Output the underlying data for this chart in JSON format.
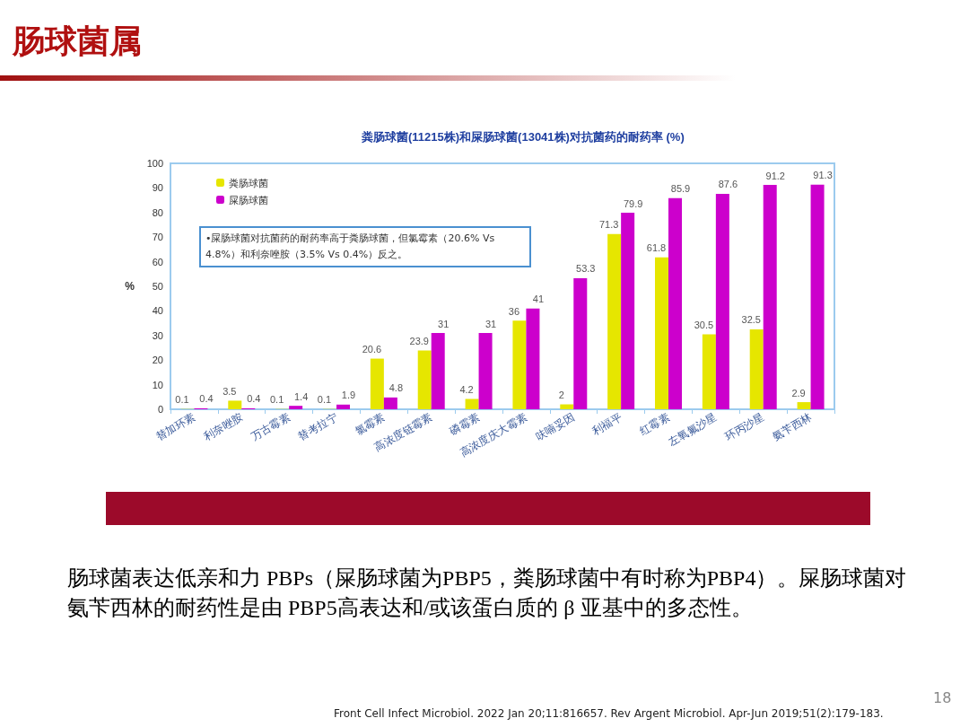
{
  "chart_data": {
    "type": "bar",
    "title": "肠球菌属",
    "subtitle": "粪肠球菌(11215株)和屎肠球菌(13041株)对抗菌药的耐药率 (%)",
    "ylabel": "%",
    "categories": [
      "替加环素",
      "利奈唑胺",
      "万古霉素",
      "替考拉宁",
      "氯霉素",
      "高浓度链霉素",
      "磷霉素",
      "高浓度庆大霉素",
      "呋喃妥因",
      "利福平",
      "红霉素",
      "左氧氟沙星",
      "环丙沙星",
      "氨苄西林"
    ],
    "series": [
      {
        "name": "粪肠球菌",
        "color": "#e6e600",
        "values": [
          0.1,
          3.5,
          0.1,
          0.1,
          20.6,
          23.9,
          4.2,
          36,
          2,
          71.3,
          61.8,
          30.5,
          32.5,
          2.9
        ]
      },
      {
        "name": "屎肠球菌",
        "color": "#cc00cc",
        "values": [
          0.4,
          0.4,
          1.4,
          1.9,
          4.8,
          31,
          31,
          41,
          53.3,
          79.9,
          85.9,
          87.6,
          91.2,
          91.3
        ]
      }
    ],
    "ylim": [
      0,
      100
    ],
    "yticks": [
      0,
      10,
      20,
      30,
      40,
      50,
      60,
      70,
      80,
      90,
      100
    ],
    "grid": false,
    "legend": "top left",
    "data_labels": true,
    "annotations": [
      "•屎肠球菌对抗菌药的耐药率高于粪肠球菌，但氯霉素（20.6% Vs 4.8%）和利奈唑胺（3.5% Vs 0.4%）反之。",
      "肠球菌表达低亲和力 PBPs（屎肠球菌为PBP5，粪肠球菌中有时称为PBP4）。屎肠球菌对氨苄西林的耐药性是由 PBP5高表达和/或该蛋白质的 β 亚基中的多态性。",
      "Front Cell Infect Microbiol. 2022 Jan 20;11:816657. Rev Argent Microbiol. Apr-Jun 2019;51(2):179-183.",
      "18"
    ]
  }
}
